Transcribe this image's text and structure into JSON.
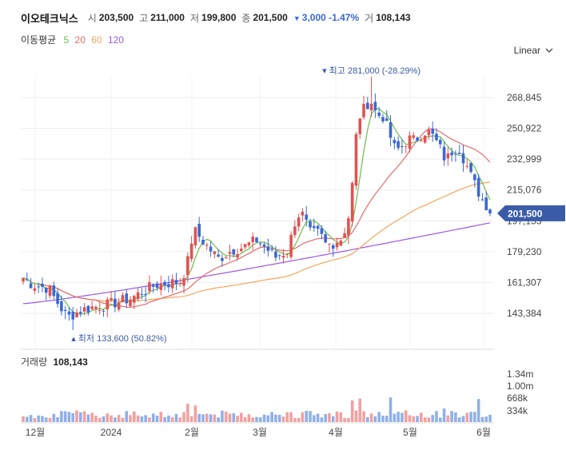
{
  "header": {
    "name": "이오테크닉스",
    "open_label": "시",
    "open": "203,500",
    "high_label": "고",
    "high": "211,000",
    "low_label": "저",
    "low": "199,800",
    "close_label": "종",
    "close": "201,500",
    "change": "3,000 -1.47%",
    "volume_label": "거",
    "volume": "108,143"
  },
  "ma_legend": {
    "title": "이동평균",
    "p5": "5",
    "p20": "20",
    "p60": "60",
    "p120": "120"
  },
  "scale_select": {
    "label": "Linear"
  },
  "volume_panel": {
    "title": "거래량",
    "value": "108,143"
  },
  "colors": {
    "up": "#e15252",
    "down": "#3a67d8",
    "ma5": "#6abf4b",
    "ma20": "#e86b6b",
    "ma60": "#f2a65a",
    "ma120": "#9b59e0",
    "current": "#3a5ba8"
  },
  "chart_data": {
    "type": "candlestick",
    "price_axis": {
      "ticks": [
        268845,
        250922,
        232999,
        215076,
        197153,
        179230,
        161307,
        143384
      ],
      "tick_labels": [
        "268,845",
        "250,922",
        "232,999",
        "215,076",
        "197,153",
        "179,230",
        "161,307",
        "143,384"
      ]
    },
    "x_ticks": [
      "12월",
      "2024",
      "2월",
      "3월",
      "4월",
      "5월",
      "6월"
    ],
    "current_price": {
      "value": 201500,
      "label": "201,500"
    },
    "high_annotation": {
      "value": 281000,
      "label": "최고 281,000 (-28.29%)"
    },
    "low_annotation": {
      "value": 133600,
      "label": "최저 133,600 (50.82%)"
    },
    "volume_axis": {
      "tick_labels": [
        "1.34m",
        "1.00m",
        "668k",
        "334k"
      ]
    },
    "moving_averages": [
      "5",
      "20",
      "60",
      "120"
    ]
  }
}
